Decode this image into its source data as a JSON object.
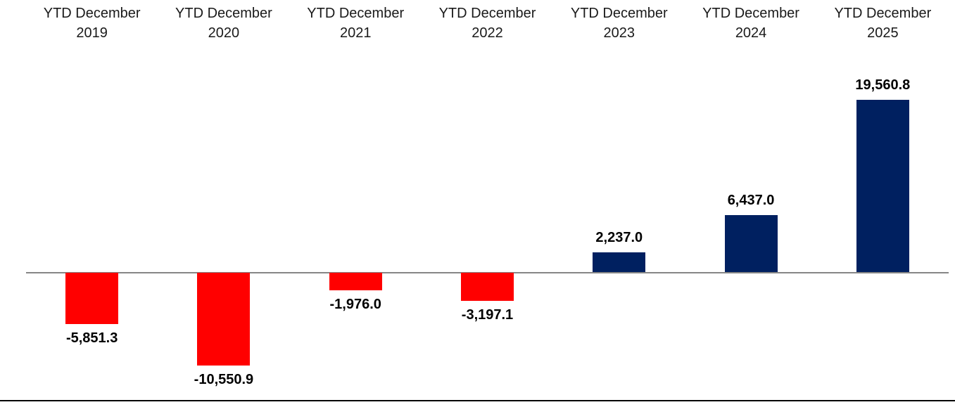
{
  "chart_data": {
    "type": "bar",
    "title": "",
    "xlabel": "",
    "ylabel": "",
    "categories": [
      "YTD December 2019",
      "YTD December 2020",
      "YTD December 2021",
      "YTD December 2022",
      "YTD December 2023",
      "YTD December 2024",
      "YTD December 2025"
    ],
    "values": [
      -5851.3,
      -10550.9,
      -1976.0,
      -3197.1,
      2237.0,
      6437.0,
      19560.8
    ],
    "value_labels": [
      "-5,851.3",
      "-10,550.9",
      "-1,976.0",
      "-3,197.1",
      "2,237.0",
      "6,437.0",
      "19,560.8"
    ],
    "ylim": [
      -12000,
      22000
    ],
    "gridlines": false,
    "legend": "none",
    "y_axis_labels_visible": false,
    "category_labels_position": "top",
    "data_label_position": "outside_end",
    "colors": {
      "positive_bar": "#002060",
      "negative_bar": "#FF0000",
      "axis_line": "#868686",
      "category_text": "#1a1a1a",
      "value_text": "#000000",
      "bottom_border": "#000000"
    }
  }
}
